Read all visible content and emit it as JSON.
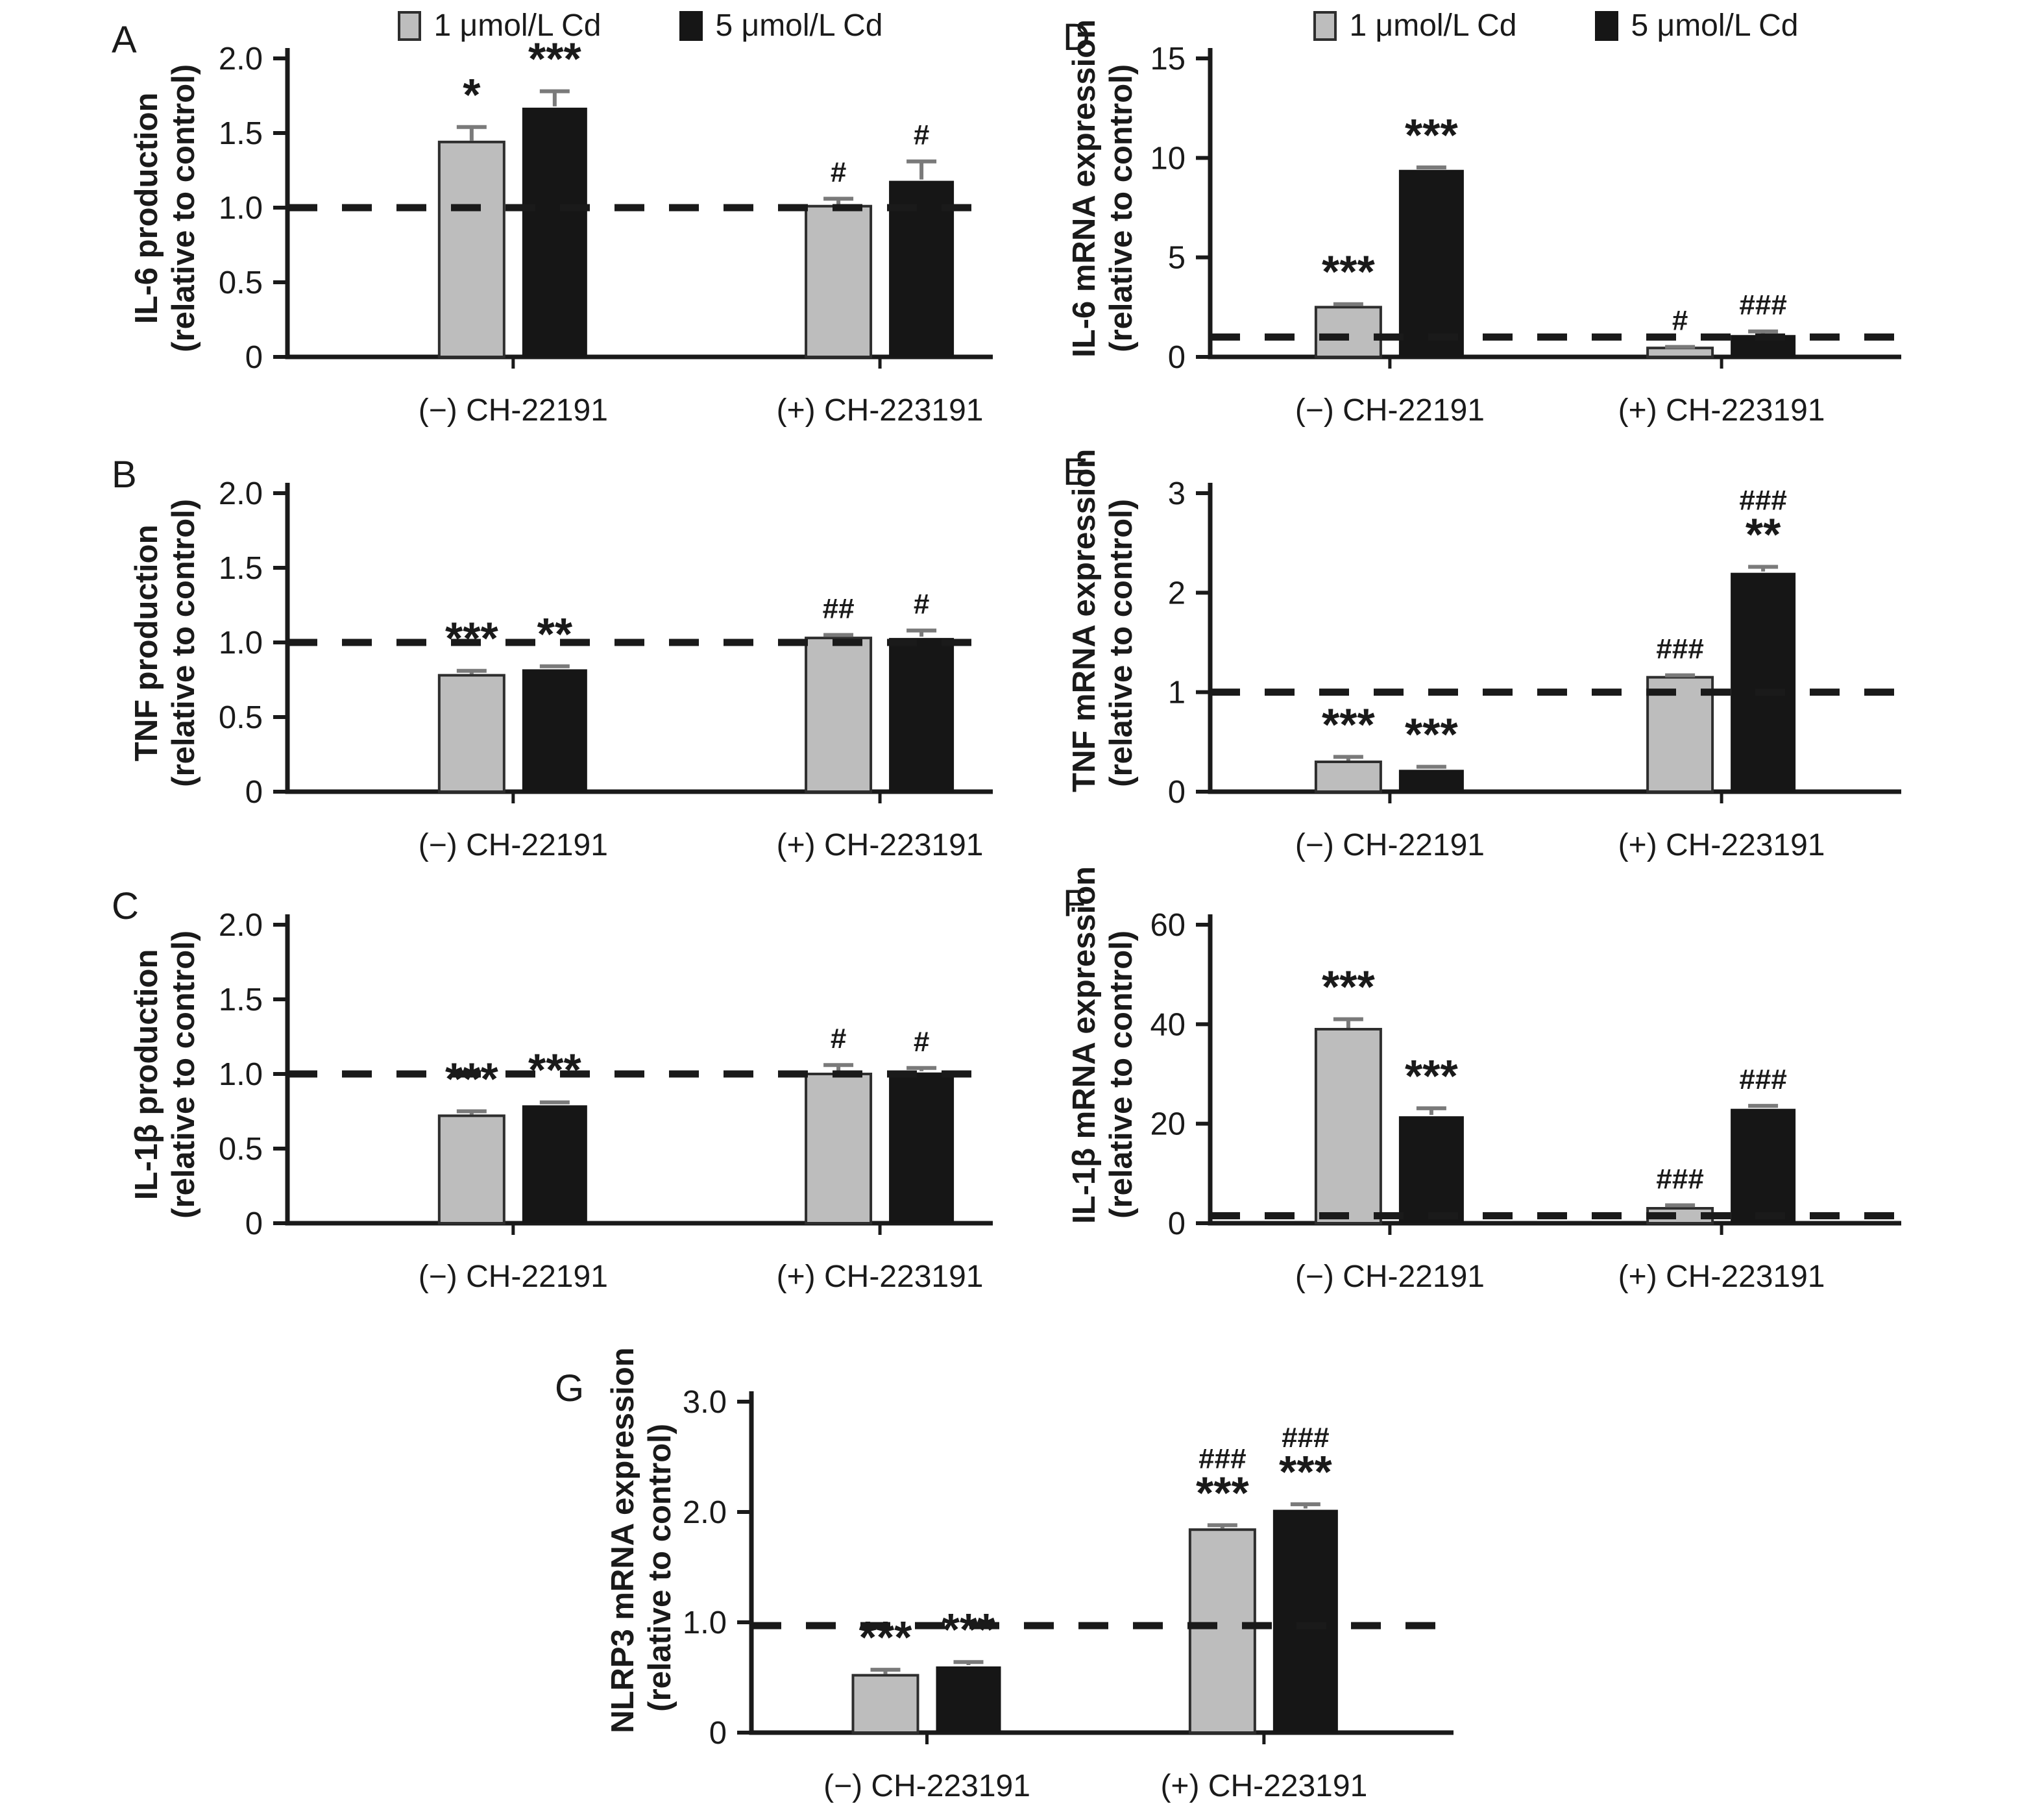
{
  "legend": {
    "items": [
      {
        "label": "1 μmol/L Cd",
        "color": "#bdbdbd",
        "border": "#2e2e2e"
      },
      {
        "label": "5 μmol/L Cd",
        "color": "#161616",
        "border": "#161616"
      }
    ]
  },
  "colors": {
    "ink": "#1a1a1a",
    "error_bar": "#7a7a7a",
    "reference_line": "#1a1a1a"
  },
  "chart_data": [
    {
      "type": "bar",
      "panel": "A",
      "ylabel": "IL-6 production",
      "ylabel2": "(relative to control)",
      "ylim": [
        0,
        2.0
      ],
      "yticks": [
        {
          "v": 0,
          "label": "0"
        },
        {
          "v": 0.5,
          "label": "0.5"
        },
        {
          "v": 1.0,
          "label": "1.0"
        },
        {
          "v": 1.5,
          "label": "1.5"
        },
        {
          "v": 2.0,
          "label": "2.0"
        }
      ],
      "reference_line": 1.0,
      "has_legend": true,
      "categories": [
        "(−) CH-22191",
        "(+) CH-223191"
      ],
      "series": [
        {
          "name": "1 μmol/L Cd",
          "values": [
            1.44,
            1.01
          ],
          "errors": [
            0.1,
            0.05
          ],
          "sig": [
            [
              "*"
            ],
            [
              "#"
            ]
          ]
        },
        {
          "name": "5 μmol/L Cd",
          "values": [
            1.67,
            1.18
          ],
          "errors": [
            0.11,
            0.13
          ],
          "sig": [
            [
              "***"
            ],
            [
              "#"
            ]
          ]
        }
      ]
    },
    {
      "type": "bar",
      "panel": "B",
      "ylabel": "TNF production",
      "ylabel2": "(relative to control)",
      "ylim": [
        0,
        2.0
      ],
      "yticks": [
        {
          "v": 0,
          "label": "0"
        },
        {
          "v": 0.5,
          "label": "0.5"
        },
        {
          "v": 1.0,
          "label": "1.0"
        },
        {
          "v": 1.5,
          "label": "1.5"
        },
        {
          "v": 2.0,
          "label": "2.0"
        }
      ],
      "reference_line": 1.0,
      "has_legend": false,
      "categories": [
        "(−) CH-22191",
        "(+) CH-223191"
      ],
      "series": [
        {
          "name": "1 μmol/L Cd",
          "values": [
            0.78,
            1.03
          ],
          "errors": [
            0.03,
            0.02
          ],
          "sig": [
            [
              "***"
            ],
            [
              "##"
            ]
          ]
        },
        {
          "name": "5 μmol/L Cd",
          "values": [
            0.82,
            1.03
          ],
          "errors": [
            0.02,
            0.05
          ],
          "sig": [
            [
              "**"
            ],
            [
              "#"
            ]
          ]
        }
      ]
    },
    {
      "type": "bar",
      "panel": "C",
      "ylabel": "IL-1β production",
      "ylabel2": "(relative to control)",
      "ylim": [
        0,
        2.0
      ],
      "yticks": [
        {
          "v": 0,
          "label": "0"
        },
        {
          "v": 0.5,
          "label": "0.5"
        },
        {
          "v": 1.0,
          "label": "1.0"
        },
        {
          "v": 1.5,
          "label": "1.5"
        },
        {
          "v": 2.0,
          "label": "2.0"
        }
      ],
      "reference_line": 1.0,
      "has_legend": false,
      "categories": [
        "(−) CH-22191",
        "(+) CH-223191"
      ],
      "series": [
        {
          "name": "1 μmol/L Cd",
          "values": [
            0.72,
            1.0
          ],
          "errors": [
            0.03,
            0.06
          ],
          "sig": [
            [
              "***"
            ],
            [
              "#"
            ]
          ]
        },
        {
          "name": "5 μmol/L Cd",
          "values": [
            0.79,
            1.01
          ],
          "errors": [
            0.02,
            0.03
          ],
          "sig": [
            [
              "***"
            ],
            [
              "#"
            ]
          ]
        }
      ]
    },
    {
      "type": "bar",
      "panel": "D",
      "ylabel": "IL-6 mRNA expression",
      "ylabel2": "(relative to control)",
      "ylim": [
        0,
        15
      ],
      "yticks": [
        {
          "v": 0,
          "label": "0"
        },
        {
          "v": 5,
          "label": "5"
        },
        {
          "v": 10,
          "label": "10"
        },
        {
          "v": 15,
          "label": "15"
        }
      ],
      "reference_line": 1.0,
      "has_legend": true,
      "categories": [
        "(−) CH-22191",
        "(+) CH-223191"
      ],
      "series": [
        {
          "name": "1 μmol/L Cd",
          "values": [
            2.5,
            0.45
          ],
          "errors": [
            0.15,
            0.05
          ],
          "sig": [
            [
              "***"
            ],
            [
              "#"
            ]
          ]
        },
        {
          "name": "5 μmol/L Cd",
          "values": [
            9.4,
            1.1
          ],
          "errors": [
            0.12,
            0.18
          ],
          "sig": [
            [
              "***"
            ],
            [
              "###"
            ]
          ]
        }
      ]
    },
    {
      "type": "bar",
      "panel": "E",
      "ylabel": "TNF mRNA expression",
      "ylabel2": "(relative to control)",
      "ylim": [
        0,
        3
      ],
      "yticks": [
        {
          "v": 0,
          "label": "0"
        },
        {
          "v": 1,
          "label": "1"
        },
        {
          "v": 2,
          "label": "2"
        },
        {
          "v": 3,
          "label": "3"
        }
      ],
      "reference_line": 1.0,
      "has_legend": false,
      "categories": [
        "(−) CH-22191",
        "(+) CH-223191"
      ],
      "series": [
        {
          "name": "1 μmol/L Cd",
          "values": [
            0.3,
            1.15
          ],
          "errors": [
            0.05,
            0.02
          ],
          "sig": [
            [
              "***"
            ],
            [
              "###"
            ]
          ]
        },
        {
          "name": "5 μmol/L Cd",
          "values": [
            0.22,
            2.2
          ],
          "errors": [
            0.03,
            0.06
          ],
          "sig": [
            [
              "***"
            ],
            [
              "###",
              "**"
            ]
          ]
        }
      ]
    },
    {
      "type": "bar",
      "panel": "F",
      "ylabel": "IL-1β mRNA expression",
      "ylabel2": "(relative to control)",
      "ylim": [
        0,
        60
      ],
      "yticks": [
        {
          "v": 0,
          "label": "0"
        },
        {
          "v": 20,
          "label": "20"
        },
        {
          "v": 40,
          "label": "40"
        },
        {
          "v": 60,
          "label": "60"
        }
      ],
      "reference_line": 1.5,
      "has_legend": false,
      "categories": [
        "(−) CH-22191",
        "(+) CH-223191"
      ],
      "series": [
        {
          "name": "1 μmol/L Cd",
          "values": [
            39,
            3
          ],
          "errors": [
            2,
            0.6
          ],
          "sig": [
            [
              "***"
            ],
            [
              "###"
            ]
          ]
        },
        {
          "name": "5 μmol/L Cd",
          "values": [
            21.5,
            23
          ],
          "errors": [
            1.6,
            0.6
          ],
          "sig": [
            [
              "***"
            ],
            [
              "###"
            ]
          ]
        }
      ]
    },
    {
      "type": "bar",
      "panel": "G",
      "ylabel": "NLRP3 mRNA expression",
      "ylabel2": "(relative to control)",
      "ylim": [
        0,
        3.0
      ],
      "yticks": [
        {
          "v": 0,
          "label": "0"
        },
        {
          "v": 1.0,
          "label": "1.0"
        },
        {
          "v": 2.0,
          "label": "2.0"
        },
        {
          "v": 3.0,
          "label": "3.0"
        }
      ],
      "reference_line": 0.97,
      "has_legend": false,
      "categories": [
        "(−) CH-223191",
        "(+) CH-223191"
      ],
      "series": [
        {
          "name": "1 μmol/L Cd",
          "values": [
            0.52,
            1.84
          ],
          "errors": [
            0.05,
            0.04
          ],
          "sig": [
            [
              "***"
            ],
            [
              "###",
              "***"
            ]
          ]
        },
        {
          "name": "5 μmol/L Cd",
          "values": [
            0.6,
            2.02
          ],
          "errors": [
            0.04,
            0.05
          ],
          "sig": [
            [
              "***"
            ],
            [
              "###",
              "***"
            ]
          ]
        }
      ]
    }
  ]
}
